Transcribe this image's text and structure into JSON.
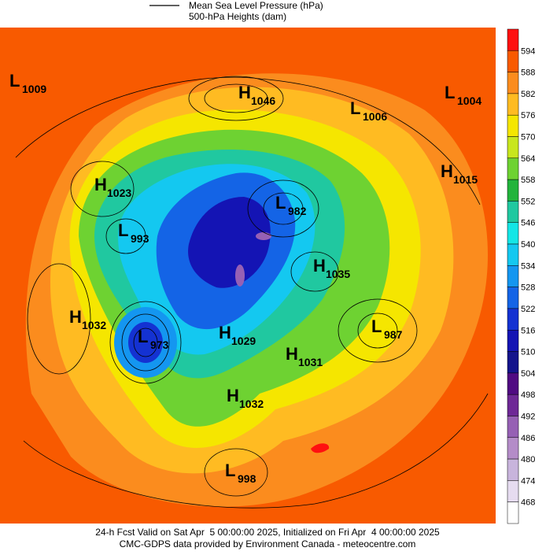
{
  "header": {
    "legend_line": "Mean Sea Level Pressure (hPa)",
    "legend_fill": "500-hPa Heights (dam)"
  },
  "colorbar": {
    "colors": [
      "#ff1010",
      "#f85a00",
      "#fb8c1e",
      "#ffbb22",
      "#f5e600",
      "#c8e61e",
      "#6ed232",
      "#22b43c",
      "#20c8a0",
      "#14e6e6",
      "#14c8f0",
      "#1496f0",
      "#1464e6",
      "#1432d2",
      "#1414b4",
      "#14148c",
      "#500a82",
      "#6e2896",
      "#9660b4",
      "#b48cc8",
      "#c8b4dc",
      "#e6dcf0",
      "#ffffff"
    ],
    "labels": [
      594,
      588,
      582,
      576,
      570,
      564,
      558,
      552,
      546,
      540,
      534,
      528,
      522,
      516,
      510,
      504,
      498,
      492,
      486,
      480,
      474,
      468
    ]
  },
  "centers": [
    {
      "type": "L",
      "value": 1009
    },
    {
      "type": "H",
      "value": 1046
    },
    {
      "type": "L",
      "value": 1006
    },
    {
      "type": "L",
      "value": 1004
    },
    {
      "type": "H",
      "value": 1023
    },
    {
      "type": "H",
      "value": 1015
    },
    {
      "type": "L",
      "value": 982
    },
    {
      "type": "L",
      "value": 993
    },
    {
      "type": "H",
      "value": 1035
    },
    {
      "type": "H",
      "value": 1032
    },
    {
      "type": "L",
      "value": 973
    },
    {
      "type": "H",
      "value": 1029
    },
    {
      "type": "L",
      "value": 987
    },
    {
      "type": "H",
      "value": 1031
    },
    {
      "type": "H",
      "value": 1032
    },
    {
      "type": "L",
      "value": 998
    }
  ],
  "footer": {
    "line1": "24-h Fcst Valid on Sat Apr  5 00:00:00 2025, Initialized on Fri Apr  4 00:00:00 2025",
    "line2": "CMC-GDPS data provided by Environment Canada - meteocentre.com"
  }
}
